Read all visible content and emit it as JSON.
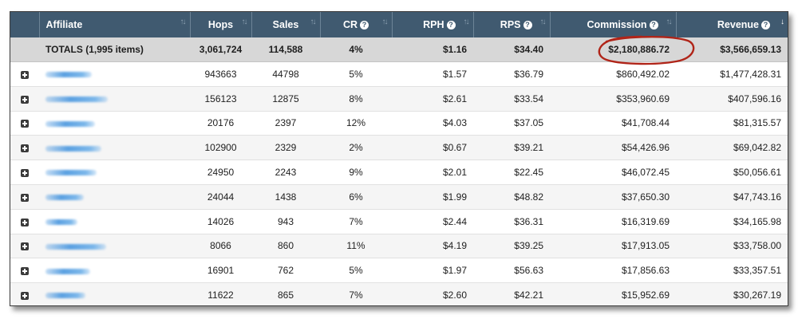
{
  "columns": [
    {
      "label": "Affiliate"
    },
    {
      "label": "Hops"
    },
    {
      "label": "Sales"
    },
    {
      "label": "CR"
    },
    {
      "label": "RPH"
    },
    {
      "label": "RPS"
    },
    {
      "label": "Commission"
    },
    {
      "label": "Revenue"
    }
  ],
  "totals": {
    "label": "TOTALS (1,995 items)",
    "hops": "3,061,724",
    "sales": "114,588",
    "cr": "4%",
    "rph": "$1.16",
    "rps": "$34.40",
    "commission": "$2,180,886.72",
    "revenue": "$3,566,659.13"
  },
  "rows": [
    {
      "hops": "943663",
      "sales": "44798",
      "cr": "5%",
      "rph": "$1.57",
      "rps": "$36.79",
      "commission": "$860,492.02",
      "revenue": "$1,477,428.31"
    },
    {
      "hops": "156123",
      "sales": "12875",
      "cr": "8%",
      "rph": "$2.61",
      "rps": "$33.54",
      "commission": "$353,960.69",
      "revenue": "$407,596.16"
    },
    {
      "hops": "20176",
      "sales": "2397",
      "cr": "12%",
      "rph": "$4.03",
      "rps": "$37.05",
      "commission": "$41,708.44",
      "revenue": "$81,315.57"
    },
    {
      "hops": "102900",
      "sales": "2329",
      "cr": "2%",
      "rph": "$0.67",
      "rps": "$39.21",
      "commission": "$54,426.96",
      "revenue": "$69,042.82"
    },
    {
      "hops": "24950",
      "sales": "2243",
      "cr": "9%",
      "rph": "$2.01",
      "rps": "$22.45",
      "commission": "$46,072.45",
      "revenue": "$50,056.61"
    },
    {
      "hops": "24044",
      "sales": "1438",
      "cr": "6%",
      "rph": "$1.99",
      "rps": "$48.82",
      "commission": "$37,650.30",
      "revenue": "$47,743.16"
    },
    {
      "hops": "14026",
      "sales": "943",
      "cr": "7%",
      "rph": "$2.44",
      "rps": "$36.31",
      "commission": "$16,319.69",
      "revenue": "$34,165.98"
    },
    {
      "hops": "8066",
      "sales": "860",
      "cr": "11%",
      "rph": "$4.19",
      "rps": "$39.25",
      "commission": "$17,913.05",
      "revenue": "$33,758.00"
    },
    {
      "hops": "16901",
      "sales": "762",
      "cr": "5%",
      "rph": "$1.97",
      "rps": "$56.63",
      "commission": "$17,856.63",
      "revenue": "$33,357.51"
    },
    {
      "hops": "11622",
      "sales": "865",
      "cr": "7%",
      "rph": "$2.60",
      "rps": "$42.21",
      "commission": "$15,952.69",
      "revenue": "$30,267.19"
    }
  ],
  "colors": {
    "header_bg": "#405a70",
    "totals_bg": "#d7d7d7",
    "highlight_circle": "#b02418",
    "redaction_blur": "#5aa0e1"
  },
  "icons": {
    "expand": "plus-square-icon",
    "help": "question-circle-icon",
    "sort": "sort-arrows-icon"
  }
}
